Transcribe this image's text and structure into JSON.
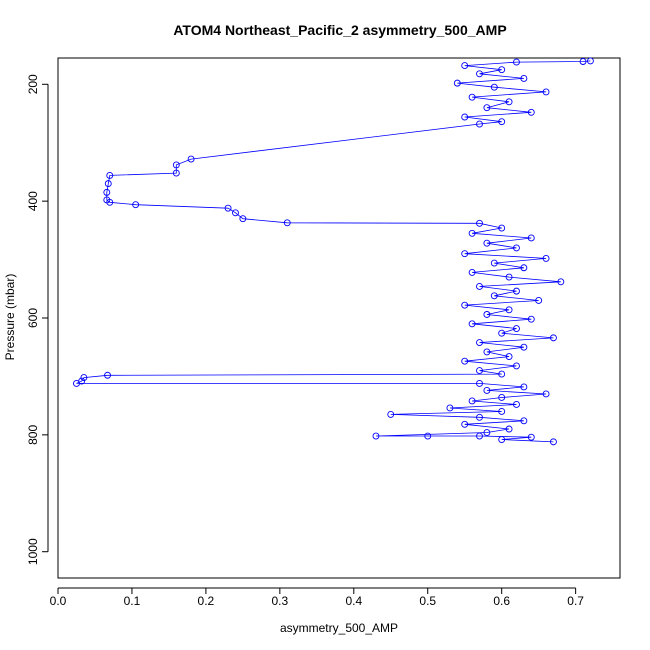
{
  "chart_data": {
    "type": "line",
    "title": "ATOM4 Northeast_Pacific_2 asymmetry_500_AMP",
    "xlabel": "asymmetry_500_AMP",
    "ylabel": "Pressure (mbar)",
    "xlim": [
      0.0,
      0.76
    ],
    "ylim": [
      1045,
      155
    ],
    "y_reversed": true,
    "x_ticks": [
      0.0,
      0.1,
      0.2,
      0.3,
      0.4,
      0.5,
      0.6,
      0.7
    ],
    "x_tick_labels": [
      "0.0",
      "0.1",
      "0.2",
      "0.3",
      "0.4",
      "0.5",
      "0.6",
      "0.7"
    ],
    "y_ticks": [
      200,
      400,
      600,
      800,
      1000
    ],
    "y_tick_labels": [
      "200",
      "400",
      "600",
      "800",
      "1000"
    ],
    "grid": false,
    "legend": "none",
    "series": [
      {
        "color": "#0000ff",
        "marker": "open-circle",
        "points": [
          [
            0.72,
            160
          ],
          [
            0.71,
            161
          ],
          [
            0.62,
            162
          ],
          [
            0.55,
            168
          ],
          [
            0.6,
            175
          ],
          [
            0.57,
            182
          ],
          [
            0.63,
            190
          ],
          [
            0.54,
            198
          ],
          [
            0.59,
            205
          ],
          [
            0.66,
            213
          ],
          [
            0.56,
            222
          ],
          [
            0.61,
            230
          ],
          [
            0.58,
            240
          ],
          [
            0.64,
            248
          ],
          [
            0.55,
            256
          ],
          [
            0.6,
            264
          ],
          [
            0.57,
            268
          ],
          [
            0.18,
            328
          ],
          [
            0.16,
            338
          ],
          [
            0.16,
            352
          ],
          [
            0.07,
            356
          ],
          [
            0.068,
            370
          ],
          [
            0.066,
            385
          ],
          [
            0.066,
            398
          ],
          [
            0.07,
            402
          ],
          [
            0.105,
            406
          ],
          [
            0.23,
            412
          ],
          [
            0.24,
            420
          ],
          [
            0.25,
            430
          ],
          [
            0.31,
            437
          ],
          [
            0.57,
            438
          ],
          [
            0.6,
            446
          ],
          [
            0.56,
            455
          ],
          [
            0.64,
            463
          ],
          [
            0.58,
            472
          ],
          [
            0.62,
            480
          ],
          [
            0.55,
            490
          ],
          [
            0.66,
            498
          ],
          [
            0.59,
            506
          ],
          [
            0.63,
            514
          ],
          [
            0.56,
            522
          ],
          [
            0.61,
            530
          ],
          [
            0.68,
            538
          ],
          [
            0.57,
            546
          ],
          [
            0.62,
            554
          ],
          [
            0.59,
            562
          ],
          [
            0.65,
            570
          ],
          [
            0.55,
            578
          ],
          [
            0.61,
            586
          ],
          [
            0.58,
            594
          ],
          [
            0.64,
            602
          ],
          [
            0.56,
            610
          ],
          [
            0.62,
            618
          ],
          [
            0.6,
            626
          ],
          [
            0.67,
            634
          ],
          [
            0.57,
            642
          ],
          [
            0.63,
            650
          ],
          [
            0.58,
            658
          ],
          [
            0.61,
            666
          ],
          [
            0.55,
            674
          ],
          [
            0.62,
            682
          ],
          [
            0.57,
            690
          ],
          [
            0.6,
            696
          ],
          [
            0.067,
            698
          ],
          [
            0.035,
            702
          ],
          [
            0.032,
            708
          ],
          [
            0.025,
            712
          ],
          [
            0.57,
            712
          ],
          [
            0.63,
            718
          ],
          [
            0.58,
            724
          ],
          [
            0.66,
            730
          ],
          [
            0.6,
            736
          ],
          [
            0.56,
            742
          ],
          [
            0.62,
            748
          ],
          [
            0.53,
            754
          ],
          [
            0.6,
            760
          ],
          [
            0.45,
            765
          ],
          [
            0.57,
            770
          ],
          [
            0.63,
            776
          ],
          [
            0.55,
            782
          ],
          [
            0.61,
            790
          ],
          [
            0.58,
            796
          ],
          [
            0.43,
            802
          ],
          [
            0.5,
            802
          ],
          [
            0.57,
            802
          ],
          [
            0.64,
            804
          ],
          [
            0.6,
            808
          ],
          [
            0.67,
            812
          ]
        ]
      }
    ]
  }
}
